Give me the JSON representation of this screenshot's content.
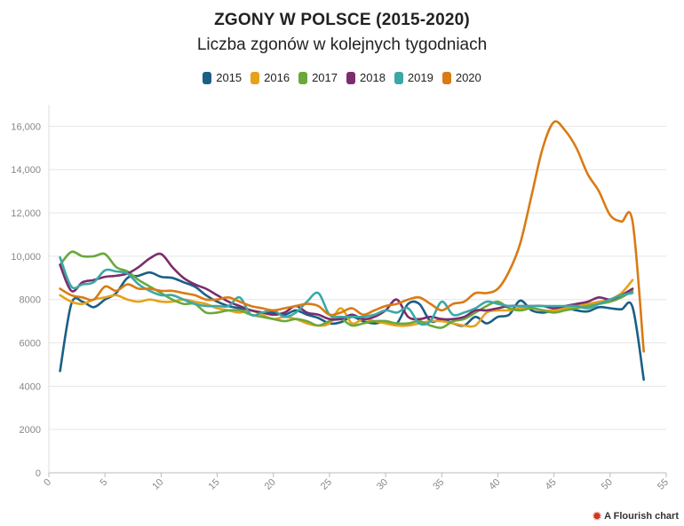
{
  "title": "ZGONY W POLSCE (2015-2020)",
  "subtitle": "Liczba zgonów w kolejnych tygodniach",
  "credit": "A Flourish chart",
  "credit_icon": "flourish-logo-icon",
  "chart_data": {
    "type": "line",
    "xlim": [
      0,
      55
    ],
    "ylim": [
      0,
      17000
    ],
    "x_ticks": [
      "0",
      "5",
      "10",
      "15",
      "20",
      "25",
      "30",
      "35",
      "40",
      "45",
      "50",
      "55"
    ],
    "y_ticks": [
      "0",
      "2000",
      "4000",
      "6000",
      "8000",
      "10,000",
      "12,000",
      "14,000",
      "16,000"
    ],
    "grid": true,
    "legend_position": "top",
    "series": [
      {
        "name": "2015",
        "color": "#1b5f86",
        "x": [
          1,
          2,
          3,
          4,
          5,
          6,
          7,
          8,
          9,
          10,
          11,
          12,
          13,
          14,
          15,
          16,
          17,
          18,
          19,
          20,
          21,
          22,
          23,
          24,
          25,
          26,
          27,
          28,
          29,
          30,
          31,
          32,
          33,
          34,
          35,
          36,
          37,
          38,
          39,
          40,
          41,
          42,
          43,
          44,
          45,
          46,
          47,
          48,
          49,
          50,
          51,
          52,
          53
        ],
        "y": [
          4700,
          7800,
          7900,
          7650,
          8000,
          8300,
          9000,
          9100,
          9250,
          9050,
          9000,
          8800,
          8600,
          8200,
          7900,
          7700,
          7600,
          7500,
          7400,
          7400,
          7300,
          7500,
          7300,
          7150,
          6900,
          6950,
          7200,
          7000,
          6900,
          7000,
          6900,
          7800,
          7800,
          7000,
          7100,
          6900,
          6800,
          7200,
          6900,
          7200,
          7300,
          7950,
          7500,
          7400,
          7500,
          7600,
          7500,
          7450,
          7650,
          7600,
          7550,
          7650,
          4300
        ]
      },
      {
        "name": "2016",
        "color": "#e8a11b",
        "x": [
          1,
          2,
          3,
          4,
          5,
          6,
          7,
          8,
          9,
          10,
          11,
          12,
          13,
          14,
          15,
          16,
          17,
          18,
          19,
          20,
          21,
          22,
          23,
          24,
          25,
          26,
          27,
          28,
          29,
          30,
          31,
          32,
          33,
          34,
          35,
          36,
          37,
          38,
          39,
          40,
          41,
          42,
          43,
          44,
          45,
          46,
          47,
          48,
          49,
          50,
          51,
          52
        ],
        "y": [
          8200,
          7900,
          7800,
          8000,
          8100,
          8200,
          8000,
          7900,
          8000,
          7900,
          7900,
          8000,
          7900,
          7800,
          7600,
          7500,
          7400,
          7500,
          7300,
          7100,
          7200,
          7100,
          6900,
          6800,
          6900,
          7600,
          6900,
          7100,
          7000,
          6900,
          6800,
          6800,
          6900,
          7000,
          7000,
          6900,
          6800,
          6800,
          7400,
          7500,
          7500,
          7600,
          7600,
          7500,
          7500,
          7600,
          7700,
          7800,
          7900,
          8000,
          8300,
          8900
        ]
      },
      {
        "name": "2017",
        "color": "#6ba83b",
        "x": [
          1,
          2,
          3,
          4,
          5,
          6,
          7,
          8,
          9,
          10,
          11,
          12,
          13,
          14,
          15,
          16,
          17,
          18,
          19,
          20,
          21,
          22,
          23,
          24,
          25,
          26,
          27,
          28,
          29,
          30,
          31,
          32,
          33,
          34,
          35,
          36,
          37,
          38,
          39,
          40,
          41,
          42,
          43,
          44,
          45,
          46,
          47,
          48,
          49,
          50,
          51,
          52
        ],
        "y": [
          9600,
          10200,
          10000,
          10000,
          10100,
          9500,
          9300,
          8900,
          8600,
          8300,
          8000,
          7800,
          7800,
          7400,
          7400,
          7500,
          7500,
          7300,
          7200,
          7100,
          7000,
          7100,
          7000,
          6800,
          7000,
          7100,
          6800,
          6900,
          7000,
          7000,
          6900,
          6900,
          7000,
          6800,
          6700,
          7000,
          7100,
          7400,
          7700,
          7900,
          7600,
          7500,
          7600,
          7500,
          7400,
          7500,
          7600,
          7700,
          7800,
          7900,
          8100,
          8400
        ]
      },
      {
        "name": "2018",
        "color": "#7b2d6e",
        "x": [
          1,
          2,
          3,
          4,
          5,
          6,
          7,
          8,
          9,
          10,
          11,
          12,
          13,
          14,
          15,
          16,
          17,
          18,
          19,
          20,
          21,
          22,
          23,
          24,
          25,
          26,
          27,
          28,
          29,
          30,
          31,
          32,
          33,
          34,
          35,
          36,
          37,
          38,
          39,
          40,
          41,
          42,
          43,
          44,
          45,
          46,
          47,
          48,
          49,
          50,
          51,
          52
        ],
        "y": [
          9600,
          8400,
          8800,
          8900,
          9050,
          9100,
          9200,
          9500,
          9900,
          10100,
          9500,
          9000,
          8700,
          8500,
          8200,
          7900,
          7700,
          7500,
          7400,
          7300,
          7400,
          7700,
          7400,
          7300,
          7100,
          7100,
          7300,
          7100,
          7200,
          7500,
          8000,
          7200,
          7100,
          7200,
          7100,
          7100,
          7200,
          7500,
          7500,
          7600,
          7700,
          7700,
          7700,
          7700,
          7600,
          7700,
          7800,
          7900,
          8100,
          8000,
          8200,
          8500
        ]
      },
      {
        "name": "2019",
        "color": "#3ba8a7",
        "x": [
          1,
          2,
          3,
          4,
          5,
          6,
          7,
          8,
          9,
          10,
          11,
          12,
          13,
          14,
          15,
          16,
          17,
          18,
          19,
          20,
          21,
          22,
          23,
          24,
          25,
          26,
          27,
          28,
          29,
          30,
          31,
          32,
          33,
          34,
          35,
          36,
          37,
          38,
          39,
          40,
          41,
          42,
          43,
          44,
          45,
          46,
          47,
          48,
          49,
          50,
          51,
          52
        ],
        "y": [
          9950,
          8600,
          8700,
          8800,
          9350,
          9300,
          9200,
          8700,
          8400,
          8200,
          8200,
          8000,
          7800,
          7700,
          7700,
          7700,
          8100,
          7300,
          7400,
          7500,
          7200,
          7400,
          7900,
          8300,
          7300,
          7200,
          7200,
          7200,
          7300,
          7500,
          7400,
          7600,
          6900,
          7000,
          7900,
          7300,
          7400,
          7600,
          7900,
          7800,
          7700,
          7700,
          7700,
          7700,
          7700,
          7700,
          7700,
          7600,
          7800,
          8000,
          8200,
          8300
        ]
      },
      {
        "name": "2020",
        "color": "#d97b14",
        "x": [
          1,
          2,
          3,
          4,
          5,
          6,
          7,
          8,
          9,
          10,
          11,
          12,
          13,
          14,
          15,
          16,
          17,
          18,
          19,
          20,
          21,
          22,
          23,
          24,
          25,
          26,
          27,
          28,
          29,
          30,
          31,
          32,
          33,
          34,
          35,
          36,
          37,
          38,
          39,
          40,
          41,
          42,
          43,
          44,
          45,
          46,
          47,
          48,
          49,
          50,
          51,
          52,
          53
        ],
        "y": [
          8500,
          8200,
          8100,
          8000,
          8600,
          8400,
          8700,
          8500,
          8500,
          8400,
          8400,
          8300,
          8200,
          8000,
          8000,
          8100,
          7900,
          7700,
          7600,
          7500,
          7600,
          7700,
          7800,
          7700,
          7300,
          7400,
          7600,
          7300,
          7500,
          7700,
          7800,
          8000,
          8100,
          7800,
          7500,
          7800,
          7900,
          8300,
          8300,
          8500,
          9300,
          10600,
          12800,
          15000,
          16200,
          15800,
          15000,
          13800,
          13000,
          11900,
          11600,
          11600,
          5600
        ]
      }
    ]
  }
}
